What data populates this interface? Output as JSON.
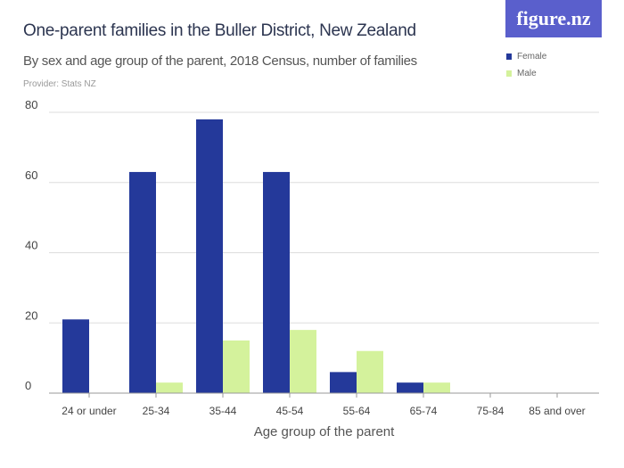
{
  "header": {
    "title": "One-parent families in the Buller District, New Zealand",
    "subtitle": "By sex and age group of the parent, 2018 Census, number of families",
    "provider": "Provider: Stats NZ",
    "logo": "figure.nz"
  },
  "chart_data": {
    "type": "bar",
    "title": "One-parent families in the Buller District, New Zealand",
    "subtitle": "By sex and age group of the parent, 2018 Census, number of families",
    "xlabel": "Age group of the parent",
    "ylabel": "",
    "categories": [
      "24 or under",
      "25-34",
      "35-44",
      "45-54",
      "55-64",
      "65-74",
      "75-84",
      "85 and over"
    ],
    "series": [
      {
        "name": "Female",
        "color": "#24399a",
        "values": [
          21,
          63,
          78,
          63,
          6,
          3,
          0,
          0
        ]
      },
      {
        "name": "Male",
        "color": "#d4f29c",
        "values": [
          0,
          3,
          15,
          18,
          12,
          3,
          0,
          0
        ]
      }
    ],
    "ylim": [
      0,
      80
    ],
    "yticks": [
      0,
      20,
      40,
      60,
      80
    ],
    "grid": true,
    "legend": "top-right"
  }
}
